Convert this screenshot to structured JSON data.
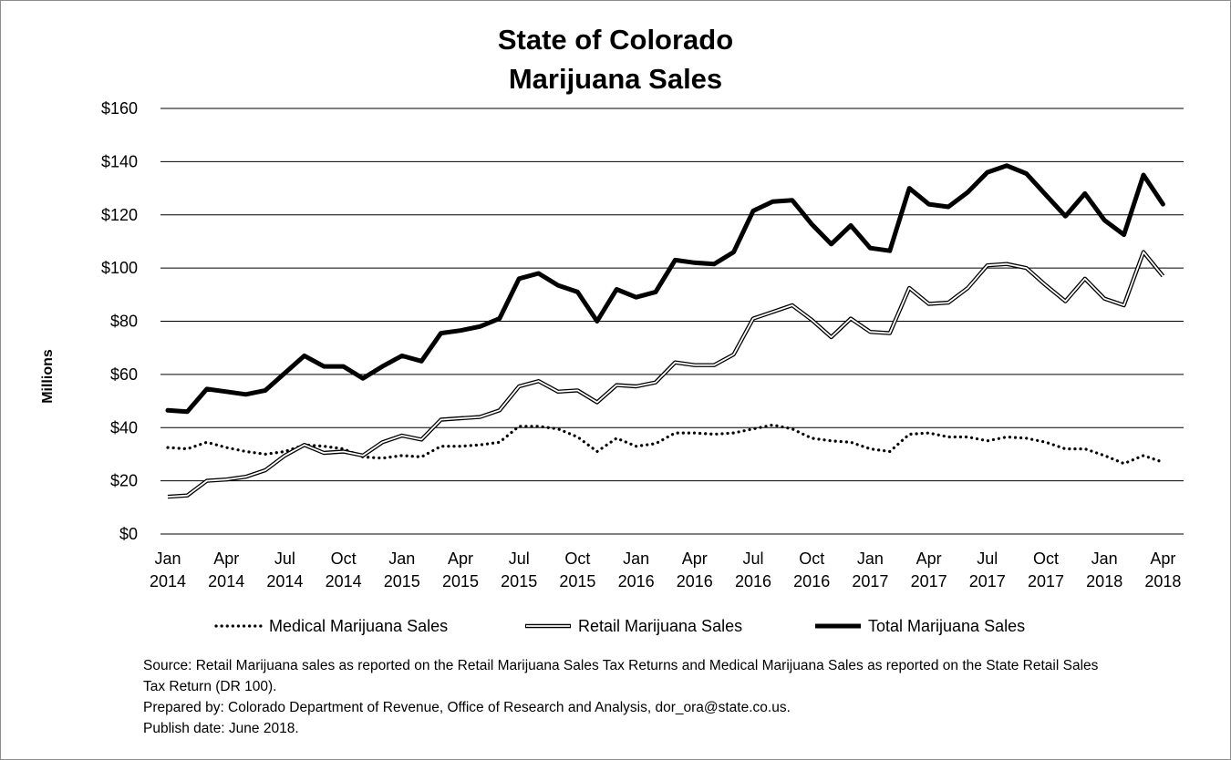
{
  "chart_data": {
    "type": "line",
    "title_lines": [
      "State of Colorado",
      "Marijuana Sales"
    ],
    "ylabel": "Millions",
    "ylim": [
      0,
      160
    ],
    "y_ticks": [
      0,
      20,
      40,
      60,
      80,
      100,
      120,
      140,
      160
    ],
    "y_tick_labels": [
      "$0",
      "$20",
      "$40",
      "$60",
      "$80",
      "$100",
      "$120",
      "$140",
      "$160"
    ],
    "grid": true,
    "legend_position": "bottom",
    "x_tick_labels": [
      {
        "index": 0,
        "month": "Jan",
        "year": "2014"
      },
      {
        "index": 3,
        "month": "Apr",
        "year": "2014"
      },
      {
        "index": 6,
        "month": "Jul",
        "year": "2014"
      },
      {
        "index": 9,
        "month": "Oct",
        "year": "2014"
      },
      {
        "index": 12,
        "month": "Jan",
        "year": "2015"
      },
      {
        "index": 15,
        "month": "Apr",
        "year": "2015"
      },
      {
        "index": 18,
        "month": "Jul",
        "year": "2015"
      },
      {
        "index": 21,
        "month": "Oct",
        "year": "2015"
      },
      {
        "index": 24,
        "month": "Jan",
        "year": "2016"
      },
      {
        "index": 27,
        "month": "Apr",
        "year": "2016"
      },
      {
        "index": 30,
        "month": "Jul",
        "year": "2016"
      },
      {
        "index": 33,
        "month": "Oct",
        "year": "2016"
      },
      {
        "index": 36,
        "month": "Jan",
        "year": "2017"
      },
      {
        "index": 39,
        "month": "Apr",
        "year": "2017"
      },
      {
        "index": 42,
        "month": "Jul",
        "year": "2017"
      },
      {
        "index": 45,
        "month": "Oct",
        "year": "2017"
      },
      {
        "index": 48,
        "month": "Jan",
        "year": "2018"
      },
      {
        "index": 51,
        "month": "Apr",
        "year": "2018"
      }
    ],
    "series": [
      {
        "name": "Medical Marijuana Sales",
        "style": "dotted",
        "color": "#000000",
        "values": [
          32.5,
          32,
          34.5,
          32.5,
          31,
          30,
          31,
          33.5,
          33,
          32,
          29,
          28.5,
          29.5,
          29,
          33,
          33,
          33.5,
          34.5,
          40.5,
          40.5,
          39.5,
          36.5,
          31,
          36,
          33,
          34,
          38,
          38,
          37.5,
          38,
          39.5,
          41,
          39.5,
          36,
          35,
          34.5,
          32,
          31,
          37.5,
          38,
          36.5,
          36.5,
          35,
          36.5,
          36,
          34.5,
          32,
          32,
          29.5,
          26.5,
          29.5,
          27
        ]
      },
      {
        "name": "Retail Marijuana Sales",
        "style": "double",
        "color": "#000000",
        "values": [
          14,
          14.5,
          20,
          20.5,
          21.5,
          24,
          29.5,
          33.5,
          30.5,
          31,
          29.5,
          34.5,
          37,
          35.5,
          43,
          43.5,
          44,
          46.5,
          55.5,
          57.5,
          53.5,
          54,
          49.5,
          56,
          55.5,
          57,
          64.5,
          63.5,
          63.5,
          67.5,
          81,
          83.5,
          86,
          80.5,
          74,
          81,
          76,
          75.5,
          92.5,
          86.5,
          87,
          92.5,
          101,
          101.5,
          100,
          93.5,
          87.5,
          96,
          88.5,
          86,
          106,
          97
        ]
      },
      {
        "name": "Total Marijuana Sales",
        "style": "thick",
        "color": "#000000",
        "values": [
          46.5,
          46,
          54.5,
          53.5,
          52.5,
          54,
          60.5,
          67,
          63,
          63,
          58.5,
          63,
          67,
          65,
          75.5,
          76.5,
          78,
          81,
          96,
          98,
          93.5,
          91,
          80,
          92,
          89,
          91,
          103,
          102,
          101.5,
          106,
          121.5,
          125,
          125.5,
          116.5,
          109,
          116,
          107.5,
          106.5,
          130,
          124,
          123,
          128.5,
          136,
          138.5,
          135.5,
          127.5,
          119.5,
          128,
          118,
          112.5,
          135,
          124
        ]
      }
    ]
  },
  "footnotes": {
    "source_line1": "Source: Retail Marijuana sales as reported on the Retail Marijuana Sales Tax Returns and Medical Marijuana Sales as reported on the State Retail Sales",
    "source_line2": "Tax Return (DR 100).",
    "prepared_by": "Prepared by: Colorado Department of Revenue, Office of Research and Analysis, dor_ora@state.co.us.",
    "publish_date": "Publish date: June 2018."
  }
}
